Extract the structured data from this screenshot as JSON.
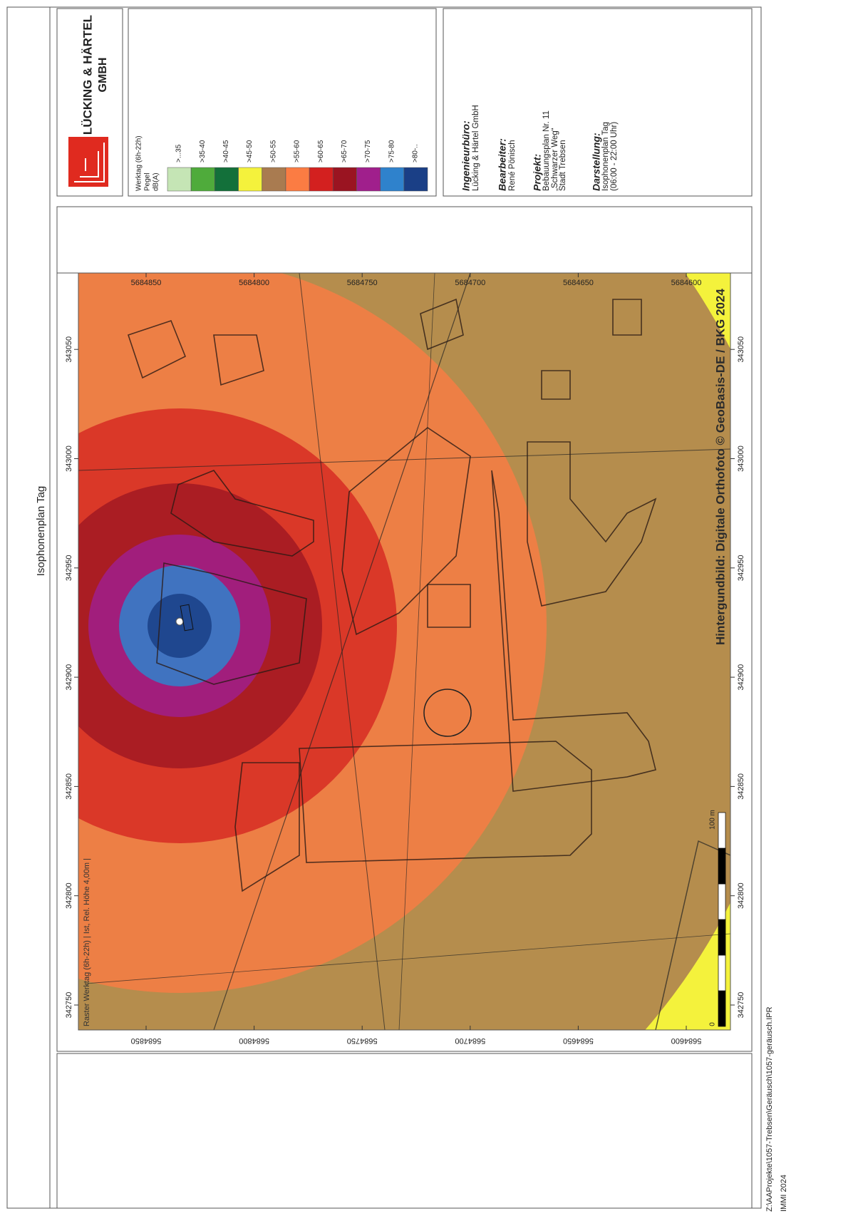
{
  "document": {
    "title": "Isophonenplan Tag",
    "logo": {
      "line1": "LÜCKING & HÄRTEL",
      "line2": "GMBH"
    },
    "legend": {
      "heading": [
        "Werktag (6h-22h)",
        "Pegel",
        "dB(A)"
      ],
      "items": [
        {
          "label": ">...35",
          "color": "#c5e5b5"
        },
        {
          "label": ">35-40",
          "color": "#4fab3b"
        },
        {
          "label": ">40-45",
          "color": "#13703a"
        },
        {
          "label": ">45-50",
          "color": "#f4f23c"
        },
        {
          "label": ">50-55",
          "color": "#a97b50"
        },
        {
          "label": ">55-60",
          "color": "#fb7c43"
        },
        {
          "label": ">60-65",
          "color": "#d3201f"
        },
        {
          "label": ">65-70",
          "color": "#9a1421"
        },
        {
          "label": ">70-75",
          "color": "#a01f8c"
        },
        {
          "label": ">75-80",
          "color": "#2f82cc"
        },
        {
          "label": ">80-..",
          "color": "#1a3f86"
        }
      ]
    },
    "info": {
      "office_label": "Ingenieurbüro:",
      "office": "Lücking & Härtel GmbH",
      "editor_label": "Bearbeiter:",
      "editor": "René Pönisch",
      "project_label": "Projekt:",
      "project": [
        "Bebauungsplan Nr. 11",
        "„Schwarzer Weg“",
        "Stadt Trebsen"
      ],
      "display_label": "Darstellung:",
      "display": [
        "Isophonenplan Tag",
        "(06:00 - 22:00 Uhr)"
      ]
    },
    "map": {
      "easting_ticks": [
        "342750",
        "342800",
        "342850",
        "342900",
        "342950",
        "343000",
        "343050"
      ],
      "northing_ticks": [
        "5684850",
        "5684800",
        "5684750",
        "5684700",
        "5684650",
        "5684600"
      ],
      "raster_label": "Raster Werktag (6h-22h) | Ist, Rel. Höhe 4,00m |",
      "attribution": "Hintergundbild: Digitale Orthofoto © GeoBasis-DE / BKG 2024",
      "scale": {
        "zero": "0",
        "length": "100 m"
      }
    },
    "footer": {
      "path": "Z:\\AAProjekte\\1057-Trebsen\\Geräusch\\1057-geräusch.IPR",
      "software": "IMMI 2024"
    }
  }
}
